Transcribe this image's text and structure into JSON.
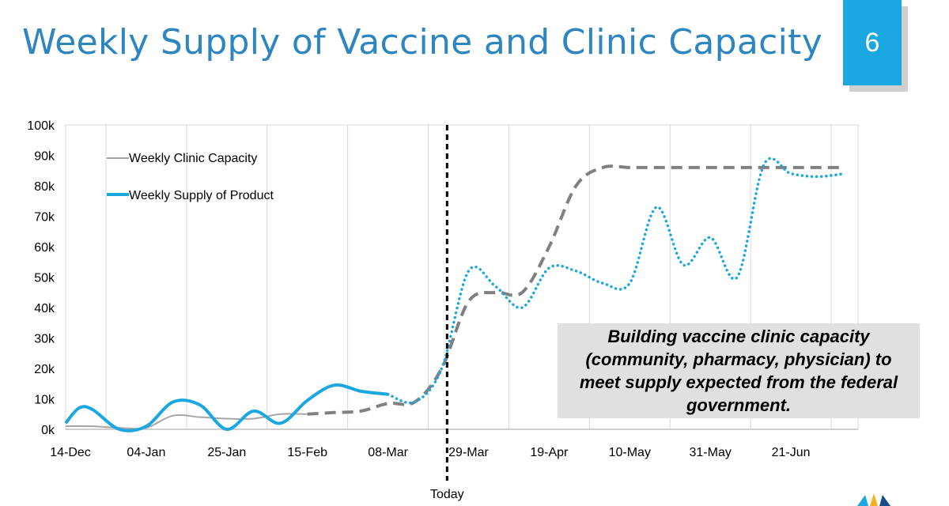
{
  "slide": {
    "title": "Weekly Supply of Vaccine and Clinic Capacity",
    "number": "6",
    "accent_color": "#1BA7DF",
    "title_color": "#2E86C1"
  },
  "callout": {
    "text": "Building vaccine clinic capacity (community, pharmacy, physician) to meet supply expected from the federal government."
  },
  "today_label": "Today",
  "chart_data": {
    "type": "line",
    "x_unit": "week",
    "x_start": "14-Dec",
    "xticks": [
      "14-Dec",
      "04-Jan",
      "25-Jan",
      "15-Feb",
      "08-Mar",
      "29-Mar",
      "19-Apr",
      "10-May",
      "31-May",
      "21-Jun"
    ],
    "xtick_weeks": [
      0,
      3,
      6,
      9,
      12,
      15,
      18,
      21,
      24,
      27
    ],
    "yticks": [
      "0k",
      "10k",
      "20k",
      "30k",
      "40k",
      "50k",
      "60k",
      "70k",
      "80k",
      "90k",
      "100k"
    ],
    "ylim": [
      0,
      100000
    ],
    "xlim": [
      0,
      29.5
    ],
    "today_week": 14.2,
    "grid": "vertical",
    "legend_position": "top-left",
    "series": [
      {
        "name": "Weekly Clinic Capacity",
        "color": "#a6a6a6",
        "dash_color": "#808080",
        "style_solid_until": 9.5,
        "points": [
          [
            0,
            1000
          ],
          [
            1,
            1000
          ],
          [
            2,
            500
          ],
          [
            3,
            500
          ],
          [
            4,
            4500
          ],
          [
            5,
            4000
          ],
          [
            6,
            3500
          ],
          [
            7,
            3500
          ],
          [
            8,
            5000
          ],
          [
            9,
            5000
          ],
          [
            10,
            5500
          ],
          [
            11,
            6000
          ],
          [
            12,
            8500
          ],
          [
            13,
            9000
          ],
          [
            14,
            20000
          ],
          [
            15,
            42000
          ],
          [
            16,
            45000
          ],
          [
            17,
            45000
          ],
          [
            18,
            60000
          ],
          [
            19,
            80000
          ],
          [
            20,
            86000
          ],
          [
            21,
            86000
          ],
          [
            22,
            86000
          ],
          [
            23,
            86000
          ],
          [
            24,
            86000
          ],
          [
            25,
            86000
          ],
          [
            26,
            86000
          ],
          [
            27,
            86000
          ],
          [
            28,
            86000
          ],
          [
            29,
            86000
          ]
        ]
      },
      {
        "name": "Weekly Supply of Product",
        "color": "#1BA7DF",
        "style_solid_until": 12,
        "points": [
          [
            0,
            2000
          ],
          [
            0.5,
            7000
          ],
          [
            1,
            6500
          ],
          [
            2,
            0
          ],
          [
            3,
            1000
          ],
          [
            4,
            9000
          ],
          [
            5,
            8000
          ],
          [
            6,
            0
          ],
          [
            7,
            6000
          ],
          [
            8,
            2000
          ],
          [
            9,
            9500
          ],
          [
            10,
            14500
          ],
          [
            11,
            12500
          ],
          [
            12,
            11500
          ],
          [
            13,
            9000
          ],
          [
            14,
            20000
          ],
          [
            15,
            52000
          ],
          [
            16,
            47000
          ],
          [
            17,
            40000
          ],
          [
            18,
            53000
          ],
          [
            19,
            52000
          ],
          [
            20,
            48000
          ],
          [
            21,
            48000
          ],
          [
            22,
            73000
          ],
          [
            23,
            54000
          ],
          [
            24,
            63000
          ],
          [
            25,
            50000
          ],
          [
            26,
            87000
          ],
          [
            27,
            84000
          ],
          [
            28,
            83000
          ],
          [
            29,
            84000
          ]
        ]
      }
    ]
  }
}
